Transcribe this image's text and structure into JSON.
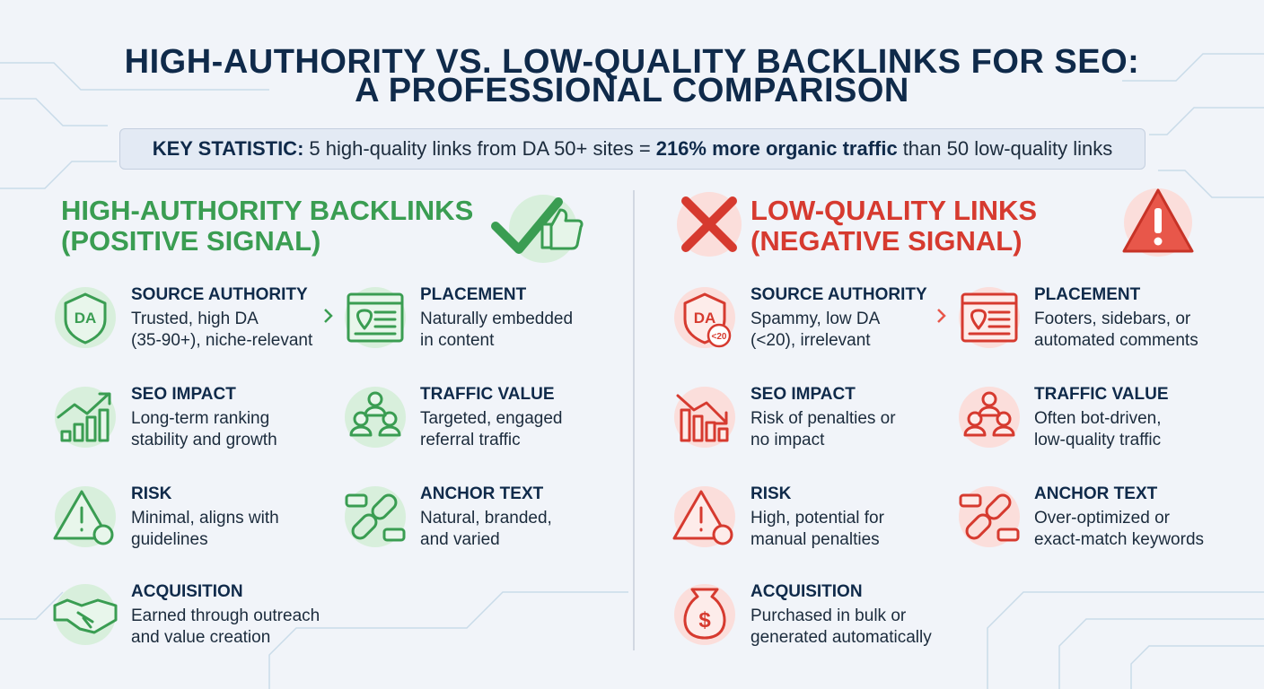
{
  "header": {
    "title": [
      "HIGH-AUTHORITY VS. LOW-QUALITY BACKLINKS FOR SEO:",
      "A PROFESSIONAL COMPARISON"
    ]
  },
  "key_statistic": {
    "label": "KEY STATISTIC:",
    "text_before": "5 high-quality links from DA 50+ sites =",
    "emphasis": "216% more organic traffic",
    "text_after": "than 50 low-quality links"
  },
  "panels": [
    {
      "heading": [
        "HIGH-AUTHORITY BACKLINKS",
        "(POSITIVE SIGNAL)"
      ],
      "items": [
        {
          "title": "SOURCE AUTHORITY",
          "text": [
            "Trusted, high DA",
            "(35-90+), niche-relevant"
          ],
          "icon_text": [
            "DA"
          ]
        },
        {
          "title": "PLACEMENT",
          "text": [
            "Naturally embedded",
            "in content"
          ]
        },
        {
          "title": "SEO IMPACT",
          "text": [
            "Long-term ranking",
            "stability and growth"
          ]
        },
        {
          "title": "TRAFFIC VALUE",
          "text": [
            "Targeted, engaged",
            "referral traffic"
          ]
        },
        {
          "title": "RISK",
          "text": [
            "Minimal, aligns with",
            "guidelines"
          ]
        },
        {
          "title": "ANCHOR TEXT",
          "text": [
            "Natural, branded,",
            "and varied"
          ]
        },
        {
          "title": "ACQUISITION",
          "text": [
            "Earned through outreach",
            "and value creation"
          ]
        }
      ]
    },
    {
      "heading": [
        "LOW-QUALITY LINKS",
        "(NEGATIVE SIGNAL)"
      ],
      "items": [
        {
          "title": "SOURCE AUTHORITY",
          "text": [
            "Spammy, low DA",
            "(<20), irrelevant"
          ],
          "icon_text": [
            "DA",
            "<20"
          ]
        },
        {
          "title": "PLACEMENT",
          "text": [
            "Footers, sidebars, or",
            "automated comments"
          ]
        },
        {
          "title": "SEO IMPACT",
          "text": [
            "Risk of penalties or",
            "no impact"
          ]
        },
        {
          "title": "TRAFFIC VALUE",
          "text": [
            "Often bot-driven,",
            "low-quality traffic"
          ]
        },
        {
          "title": "RISK",
          "text": [
            "High, potential for",
            "manual penalties"
          ]
        },
        {
          "title": "ANCHOR TEXT",
          "text": [
            "Over-optimized or",
            "exact-match keywords"
          ]
        },
        {
          "title": "ACQUISITION",
          "text": [
            "Purchased in bulk or",
            "generated automatically"
          ],
          "icon_text": [
            "$"
          ]
        }
      ]
    }
  ]
}
